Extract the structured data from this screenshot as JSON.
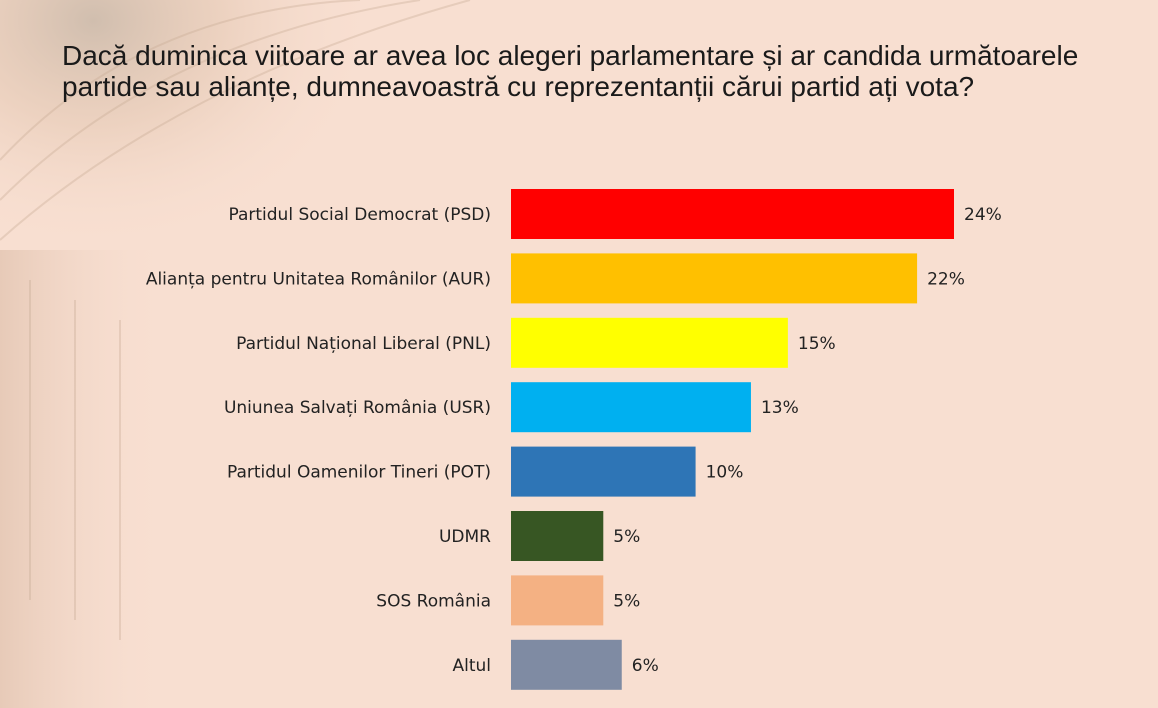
{
  "page": {
    "question": "Dacă duminica viitoare ar avea loc alegeri parlamentare și ar candida următoarele partide sau alianțe, dumneavoastră cu reprezentanții cărui partid ați vota?"
  },
  "chart_data": {
    "type": "bar",
    "orientation": "horizontal",
    "title": "",
    "xlabel": "",
    "ylabel": "",
    "xlim": [
      0,
      24
    ],
    "grid": false,
    "unit": "%",
    "categories": [
      "Partidul Social Democrat (PSD)",
      "Alianța pentru Unitatea Românilor (AUR)",
      "Partidul Național Liberal (PNL)",
      "Uniunea Salvați România (USR)",
      "Partidul Oamenilor Tineri (POT)",
      "UDMR",
      "SOS România",
      "Altul"
    ],
    "values": [
      24,
      22,
      15,
      13,
      10,
      5,
      5,
      6
    ],
    "value_labels": [
      "24%",
      "22%",
      "15%",
      "13%",
      "10%",
      "5%",
      "5%",
      "6%"
    ],
    "colors": [
      "#ff0000",
      "#ffc000",
      "#ffff00",
      "#00b0f0",
      "#2e75b6",
      "#375623",
      "#f4b183",
      "#7f8ba3"
    ]
  }
}
